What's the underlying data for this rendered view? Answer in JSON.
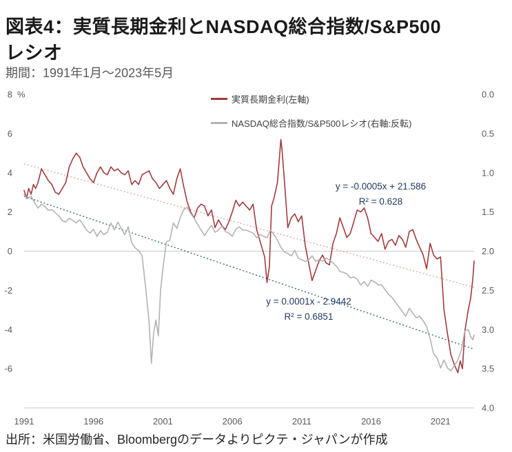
{
  "title": {
    "line1": "図表4：実質長期金利とNASDAQ総合指数/S&P500",
    "line2": "レシオ"
  },
  "subtitle": "期間：1991年1月～2023年5月",
  "source": "出所：米国労働省、Bloombergのデータよりピクテ・ジャパンが作成",
  "legend": [
    {
      "label": "実質長期金利(左軸)",
      "color": "#a13a3c"
    },
    {
      "label": "NASDAQ総合指数/S&P500レシオ(右軸:反転)",
      "color": "#b2b2b2"
    }
  ],
  "annotations": [
    {
      "line1": "y = -0.0005x + 21.586",
      "line2": "R² = 0.628"
    },
    {
      "line1": "y = 0.0001x - 2.9442",
      "line2": "R² = 0.6851"
    }
  ],
  "chart_data": {
    "type": "line",
    "title": "実質長期金利とNASDAQ総合指数/S&P500レシオ",
    "x_range": [
      1991.0,
      2023.42
    ],
    "x_ticks": [
      1991,
      1996,
      2001,
      2006,
      2011,
      2016,
      2021
    ],
    "left_axis": {
      "label": "%",
      "min": -8,
      "max": 8,
      "ticks": [
        8,
        6,
        4,
        2,
        0,
        -2,
        -4,
        -6
      ]
    },
    "right_axis": {
      "min": 0,
      "max": 4,
      "inverted": true,
      "ticks": [
        "0.0",
        "0.5",
        "1.0",
        "1.5",
        "2.0",
        "2.5",
        "3.0",
        "3.5",
        "4.0"
      ]
    },
    "grid": "zero-line-only",
    "legend_position": "top-center",
    "series": [
      {
        "name": "実質長期金利(左軸)",
        "axis": "left",
        "color": "#a13a3c",
        "unit": "%",
        "points": [
          [
            1991.0,
            3.1
          ],
          [
            1991.17,
            2.7
          ],
          [
            1991.33,
            3.2
          ],
          [
            1991.5,
            2.9
          ],
          [
            1991.67,
            3.4
          ],
          [
            1991.83,
            3.2
          ],
          [
            1992.0,
            3.5
          ],
          [
            1992.25,
            4.2
          ],
          [
            1992.5,
            3.9
          ],
          [
            1992.75,
            3.6
          ],
          [
            1993.0,
            3.4
          ],
          [
            1993.25,
            3.0
          ],
          [
            1993.5,
            2.9
          ],
          [
            1993.75,
            3.2
          ],
          [
            1994.0,
            3.5
          ],
          [
            1994.25,
            4.3
          ],
          [
            1994.5,
            4.7
          ],
          [
            1994.75,
            5.0
          ],
          [
            1995.0,
            4.8
          ],
          [
            1995.25,
            4.3
          ],
          [
            1995.5,
            4.0
          ],
          [
            1995.75,
            3.7
          ],
          [
            1996.0,
            3.5
          ],
          [
            1996.25,
            4.0
          ],
          [
            1996.5,
            4.3
          ],
          [
            1996.75,
            4.0
          ],
          [
            1997.0,
            3.9
          ],
          [
            1997.25,
            4.3
          ],
          [
            1997.5,
            4.1
          ],
          [
            1997.75,
            4.2
          ],
          [
            1998.0,
            4.0
          ],
          [
            1998.25,
            3.9
          ],
          [
            1998.5,
            4.1
          ],
          [
            1998.75,
            3.4
          ],
          [
            1999.0,
            3.6
          ],
          [
            1999.25,
            3.4
          ],
          [
            1999.5,
            3.9
          ],
          [
            1999.75,
            4.0
          ],
          [
            2000.0,
            4.1
          ],
          [
            2000.25,
            3.7
          ],
          [
            2000.5,
            3.5
          ],
          [
            2000.75,
            3.2
          ],
          [
            2001.0,
            3.4
          ],
          [
            2001.25,
            3.6
          ],
          [
            2001.5,
            3.2
          ],
          [
            2001.75,
            2.9
          ],
          [
            2002.0,
            3.7
          ],
          [
            2002.25,
            4.2
          ],
          [
            2002.5,
            3.3
          ],
          [
            2002.75,
            2.5
          ],
          [
            2003.0,
            2.0
          ],
          [
            2003.25,
            1.7
          ],
          [
            2003.5,
            2.2
          ],
          [
            2003.75,
            2.4
          ],
          [
            2004.0,
            2.3
          ],
          [
            2004.25,
            1.8
          ],
          [
            2004.5,
            2.1
          ],
          [
            2004.75,
            1.2
          ],
          [
            2005.0,
            1.6
          ],
          [
            2005.25,
            1.3
          ],
          [
            2005.5,
            1.1
          ],
          [
            2005.75,
            1.5
          ],
          [
            2006.0,
            2.0
          ],
          [
            2006.25,
            2.6
          ],
          [
            2006.5,
            2.3
          ],
          [
            2006.75,
            2.5
          ],
          [
            2007.0,
            2.3
          ],
          [
            2007.25,
            2.1
          ],
          [
            2007.5,
            2.4
          ],
          [
            2007.75,
            1.1
          ],
          [
            2008.0,
            0.5
          ],
          [
            2008.17,
            0.1
          ],
          [
            2008.33,
            -0.3
          ],
          [
            2008.5,
            -1.6
          ],
          [
            2008.67,
            -0.8
          ],
          [
            2008.83,
            2.3
          ],
          [
            2009.0,
            2.7
          ],
          [
            2009.25,
            3.5
          ],
          [
            2009.5,
            5.7
          ],
          [
            2009.58,
            5.2
          ],
          [
            2009.75,
            3.6
          ],
          [
            2010.0,
            1.2
          ],
          [
            2010.25,
            1.7
          ],
          [
            2010.5,
            1.9
          ],
          [
            2010.75,
            1.5
          ],
          [
            2011.0,
            1.8
          ],
          [
            2011.25,
            0.3
          ],
          [
            2011.5,
            -0.6
          ],
          [
            2011.75,
            -1.5
          ],
          [
            2012.0,
            -1.0
          ],
          [
            2012.25,
            -0.5
          ],
          [
            2012.5,
            -0.2
          ],
          [
            2012.75,
            -0.6
          ],
          [
            2013.0,
            -0.7
          ],
          [
            2013.25,
            0.4
          ],
          [
            2013.5,
            0.9
          ],
          [
            2013.75,
            1.7
          ],
          [
            2014.0,
            1.2
          ],
          [
            2014.25,
            0.7
          ],
          [
            2014.5,
            0.9
          ],
          [
            2014.75,
            1.5
          ],
          [
            2015.0,
            2.1
          ],
          [
            2015.25,
            2.0
          ],
          [
            2015.5,
            2.2
          ],
          [
            2015.75,
            1.7
          ],
          [
            2016.0,
            0.9
          ],
          [
            2016.25,
            0.7
          ],
          [
            2016.5,
            0.5
          ],
          [
            2016.75,
            0.9
          ],
          [
            2017.0,
            0.1
          ],
          [
            2017.25,
            0.5
          ],
          [
            2017.5,
            0.6
          ],
          [
            2017.75,
            0.3
          ],
          [
            2018.0,
            0.8
          ],
          [
            2018.25,
            0.6
          ],
          [
            2018.5,
            0.2
          ],
          [
            2018.75,
            1.0
          ],
          [
            2019.0,
            1.1
          ],
          [
            2019.25,
            0.6
          ],
          [
            2019.5,
            0.2
          ],
          [
            2019.75,
            -0.2
          ],
          [
            2020.0,
            -0.9
          ],
          [
            2020.25,
            0.4
          ],
          [
            2020.5,
            -0.2
          ],
          [
            2020.75,
            -0.4
          ],
          [
            2021.0,
            -0.3
          ],
          [
            2021.25,
            -3.0
          ],
          [
            2021.5,
            -4.2
          ],
          [
            2021.75,
            -5.3
          ],
          [
            2022.0,
            -5.8
          ],
          [
            2022.25,
            -6.2
          ],
          [
            2022.42,
            -5.6
          ],
          [
            2022.58,
            -6.0
          ],
          [
            2022.75,
            -4.1
          ],
          [
            2023.0,
            -3.0
          ],
          [
            2023.17,
            -2.4
          ],
          [
            2023.33,
            -1.4
          ],
          [
            2023.42,
            -0.5
          ]
        ]
      },
      {
        "name": "NASDAQ総合指数/S&P500レシオ(右軸:反転)",
        "axis": "right",
        "color": "#b2b2b2",
        "unit": "ratio",
        "points": [
          [
            1991.0,
            1.28
          ],
          [
            1991.25,
            1.33
          ],
          [
            1991.5,
            1.3
          ],
          [
            1991.75,
            1.38
          ],
          [
            1992.0,
            1.45
          ],
          [
            1992.25,
            1.4
          ],
          [
            1992.5,
            1.43
          ],
          [
            1992.75,
            1.48
          ],
          [
            1993.0,
            1.47
          ],
          [
            1993.25,
            1.51
          ],
          [
            1993.5,
            1.55
          ],
          [
            1993.75,
            1.61
          ],
          [
            1994.0,
            1.63
          ],
          [
            1994.25,
            1.58
          ],
          [
            1994.5,
            1.61
          ],
          [
            1994.75,
            1.64
          ],
          [
            1995.0,
            1.6
          ],
          [
            1995.25,
            1.66
          ],
          [
            1995.5,
            1.73
          ],
          [
            1995.75,
            1.77
          ],
          [
            1996.0,
            1.72
          ],
          [
            1996.25,
            1.81
          ],
          [
            1996.5,
            1.74
          ],
          [
            1996.75,
            1.79
          ],
          [
            1997.0,
            1.76
          ],
          [
            1997.25,
            1.64
          ],
          [
            1997.5,
            1.73
          ],
          [
            1997.75,
            1.63
          ],
          [
            1998.0,
            1.71
          ],
          [
            1998.25,
            1.79
          ],
          [
            1998.5,
            1.69
          ],
          [
            1998.75,
            1.89
          ],
          [
            1999.0,
            1.96
          ],
          [
            1999.25,
            1.99
          ],
          [
            1999.5,
            2.06
          ],
          [
            1999.75,
            2.45
          ],
          [
            2000.0,
            2.9
          ],
          [
            2000.17,
            3.43
          ],
          [
            2000.33,
            3.05
          ],
          [
            2000.5,
            2.88
          ],
          [
            2000.67,
            3.08
          ],
          [
            2000.83,
            2.5
          ],
          [
            2001.0,
            2.22
          ],
          [
            2001.25,
            1.88
          ],
          [
            2001.5,
            1.86
          ],
          [
            2001.75,
            1.64
          ],
          [
            2002.0,
            1.71
          ],
          [
            2002.25,
            1.57
          ],
          [
            2002.5,
            1.47
          ],
          [
            2002.75,
            1.44
          ],
          [
            2003.0,
            1.52
          ],
          [
            2003.25,
            1.58
          ],
          [
            2003.5,
            1.66
          ],
          [
            2003.75,
            1.73
          ],
          [
            2004.0,
            1.8
          ],
          [
            2004.25,
            1.73
          ],
          [
            2004.5,
            1.67
          ],
          [
            2004.75,
            1.76
          ],
          [
            2005.0,
            1.73
          ],
          [
            2005.25,
            1.68
          ],
          [
            2005.5,
            1.75
          ],
          [
            2005.75,
            1.77
          ],
          [
            2006.0,
            1.81
          ],
          [
            2006.25,
            1.72
          ],
          [
            2006.5,
            1.69
          ],
          [
            2006.75,
            1.73
          ],
          [
            2007.0,
            1.73
          ],
          [
            2007.25,
            1.75
          ],
          [
            2007.5,
            1.77
          ],
          [
            2007.75,
            1.83
          ],
          [
            2008.0,
            1.79
          ],
          [
            2008.25,
            1.81
          ],
          [
            2008.5,
            1.83
          ],
          [
            2008.75,
            1.73
          ],
          [
            2009.0,
            1.79
          ],
          [
            2009.25,
            1.86
          ],
          [
            2009.5,
            1.95
          ],
          [
            2009.75,
            2.01
          ],
          [
            2010.0,
            2.03
          ],
          [
            2010.25,
            2.06
          ],
          [
            2010.5,
            1.99
          ],
          [
            2010.75,
            2.09
          ],
          [
            2011.0,
            2.11
          ],
          [
            2011.25,
            2.13
          ],
          [
            2011.5,
            2.11
          ],
          [
            2011.75,
            2.06
          ],
          [
            2012.0,
            2.13
          ],
          [
            2012.25,
            2.11
          ],
          [
            2012.5,
            2.13
          ],
          [
            2012.75,
            2.09
          ],
          [
            2013.0,
            2.11
          ],
          [
            2013.25,
            2.15
          ],
          [
            2013.5,
            2.19
          ],
          [
            2013.75,
            2.26
          ],
          [
            2014.0,
            2.27
          ],
          [
            2014.25,
            2.29
          ],
          [
            2014.5,
            2.34
          ],
          [
            2014.75,
            2.33
          ],
          [
            2015.0,
            2.36
          ],
          [
            2015.25,
            2.43
          ],
          [
            2015.5,
            2.39
          ],
          [
            2015.75,
            2.45
          ],
          [
            2016.0,
            2.37
          ],
          [
            2016.25,
            2.39
          ],
          [
            2016.5,
            2.43
          ],
          [
            2016.75,
            2.43
          ],
          [
            2017.0,
            2.49
          ],
          [
            2017.25,
            2.55
          ],
          [
            2017.5,
            2.59
          ],
          [
            2017.75,
            2.65
          ],
          [
            2018.0,
            2.71
          ],
          [
            2018.25,
            2.77
          ],
          [
            2018.5,
            2.83
          ],
          [
            2018.75,
            2.73
          ],
          [
            2019.0,
            2.79
          ],
          [
            2019.25,
            2.85
          ],
          [
            2019.5,
            2.83
          ],
          [
            2019.75,
            2.89
          ],
          [
            2020.0,
            2.96
          ],
          [
            2020.25,
            3.12
          ],
          [
            2020.5,
            3.31
          ],
          [
            2020.75,
            3.36
          ],
          [
            2021.0,
            3.49
          ],
          [
            2021.25,
            3.39
          ],
          [
            2021.5,
            3.49
          ],
          [
            2021.75,
            3.53
          ],
          [
            2022.0,
            3.46
          ],
          [
            2022.25,
            3.39
          ],
          [
            2022.5,
            3.26
          ],
          [
            2022.75,
            3.02
          ],
          [
            2023.0,
            3.0
          ],
          [
            2023.17,
            3.09
          ],
          [
            2023.33,
            3.13
          ],
          [
            2023.42,
            3.07
          ]
        ]
      }
    ],
    "trendlines": [
      {
        "series": "実質長期金利",
        "axis": "left",
        "color": "#e3a6a6",
        "style": "dotted",
        "x1": 1991.0,
        "y1": 4.45,
        "x2": 2023.42,
        "y2": -1.85,
        "equation": "y = -0.0005x + 21.586",
        "r2": "R² = 0.628"
      },
      {
        "series": "NASDAQ総合指数/S&P500レシオ",
        "axis": "right",
        "color": "#33647a",
        "style": "dotted",
        "x1": 1991.0,
        "y1": 1.3,
        "x2": 2023.42,
        "y2": 3.25,
        "equation": "y = 0.0001x - 2.9442",
        "r2": "R² = 0.6851"
      }
    ]
  }
}
